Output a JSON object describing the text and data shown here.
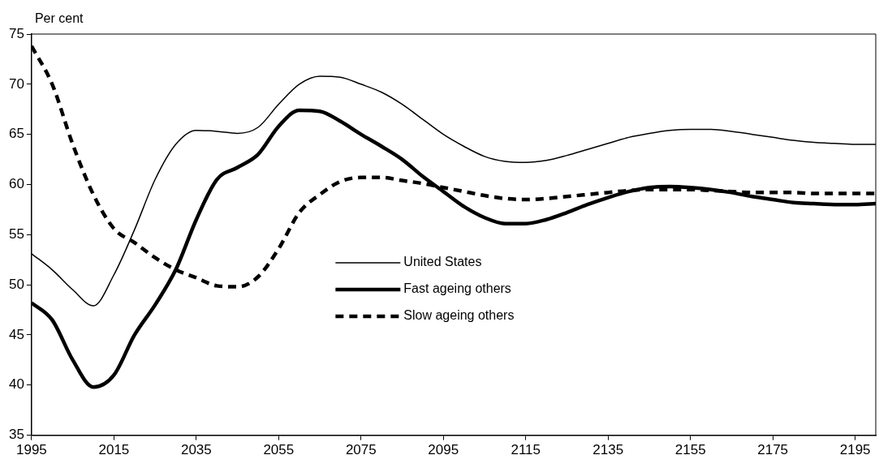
{
  "chart_data": {
    "type": "line",
    "ylabel": "Per cent",
    "x": [
      1995,
      2000,
      2005,
      2010,
      2015,
      2020,
      2025,
      2030,
      2035,
      2040,
      2045,
      2050,
      2055,
      2060,
      2065,
      2070,
      2075,
      2080,
      2085,
      2090,
      2095,
      2100,
      2105,
      2110,
      2115,
      2120,
      2125,
      2130,
      2135,
      2140,
      2145,
      2150,
      2155,
      2160,
      2165,
      2170,
      2175,
      2180,
      2185,
      2190,
      2195,
      2200
    ],
    "series": [
      {
        "name": "United States",
        "color": "#000000",
        "line_style": "solid",
        "values": [
          53.1,
          51.5,
          49.5,
          47.9,
          51,
          55.5,
          60.5,
          64,
          65.4,
          65.3,
          65.1,
          65.7,
          68,
          70,
          70.8,
          70.7,
          70,
          69.2,
          68,
          66.5,
          65,
          63.8,
          62.8,
          62.3,
          62.2,
          62.4,
          62.9,
          63.5,
          64.1,
          64.7,
          65.1,
          65.4,
          65.5,
          65.5,
          65.3,
          65,
          64.7,
          64.4,
          64.2,
          64.1,
          64,
          64
        ]
      },
      {
        "name": "Fast ageing others",
        "color": "#000000",
        "line_style": "solid",
        "values": [
          48.2,
          46.5,
          42.5,
          39.8,
          41,
          45,
          48,
          51.5,
          56.5,
          60.5,
          61.7,
          63,
          65.8,
          67.4,
          67.3,
          66.3,
          65,
          63.8,
          62.5,
          60.8,
          59.3,
          57.8,
          56.7,
          56.1,
          56.1,
          56.5,
          57.2,
          58,
          58.7,
          59.3,
          59.7,
          59.8,
          59.7,
          59.5,
          59.2,
          58.8,
          58.5,
          58.2,
          58.1,
          58,
          58,
          58.1
        ]
      },
      {
        "name": "Slow ageing others",
        "color": "#000000",
        "line_style": "dashed",
        "values": [
          73.8,
          70,
          64,
          59,
          55.6,
          54.2,
          52.7,
          51.5,
          50.7,
          49.9,
          49.8,
          50.8,
          53.6,
          57.2,
          59,
          60.3,
          60.7,
          60.7,
          60.4,
          60.1,
          59.7,
          59.3,
          58.9,
          58.6,
          58.5,
          58.6,
          58.8,
          59,
          59.2,
          59.4,
          59.5,
          59.5,
          59.5,
          59.4,
          59.3,
          59.2,
          59.2,
          59.2,
          59.1,
          59.1,
          59.1,
          59.1
        ]
      }
    ],
    "xlim": [
      1995,
      2200
    ],
    "xticks": [
      1995,
      2015,
      2035,
      2055,
      2075,
      2095,
      2115,
      2135,
      2155,
      2175,
      2195
    ],
    "ylim": [
      35,
      75
    ],
    "yticks": [
      35,
      40,
      45,
      50,
      55,
      60,
      65,
      70,
      75
    ],
    "grid": false,
    "legend": "center",
    "marker": "none"
  }
}
